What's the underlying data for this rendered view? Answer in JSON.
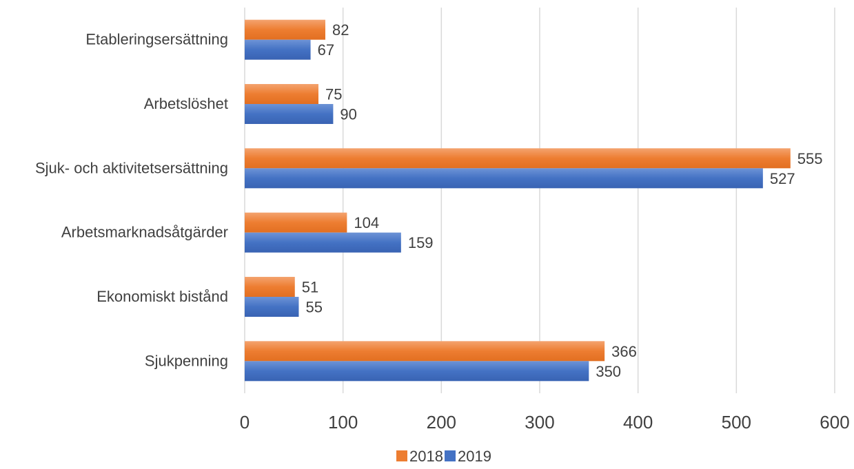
{
  "chart_data": {
    "type": "bar",
    "orientation": "horizontal",
    "categories": [
      "Etableringsersättning",
      "Arbetslöshet",
      "Sjuk- och aktivitetsersättning",
      "Arbetsmarknadsåtgärder",
      "Ekonomiskt bistånd",
      "Sjukpenning"
    ],
    "series": [
      {
        "name": "2018",
        "color": "#ed7d31",
        "values": [
          82,
          75,
          555,
          104,
          51,
          366
        ]
      },
      {
        "name": "2019",
        "color": "#4472c4",
        "values": [
          67,
          90,
          527,
          159,
          55,
          350
        ]
      }
    ],
    "xlim": [
      0,
      600
    ],
    "xticks": [
      0,
      100,
      200,
      300,
      400,
      500,
      600
    ],
    "grid": true,
    "legend_position": "bottom",
    "data_labels": true,
    "title": "",
    "xlabel": "",
    "ylabel": ""
  }
}
